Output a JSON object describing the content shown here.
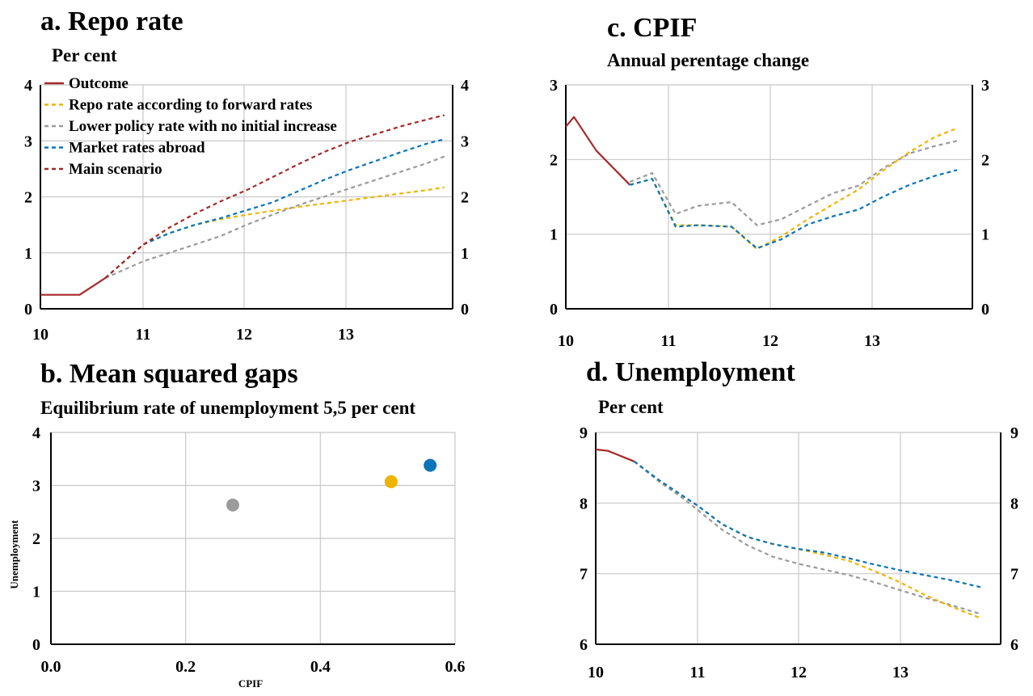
{
  "panels": {
    "a": {
      "title": "a. Repo rate",
      "subtitle": "Per cent"
    },
    "b": {
      "title": "b. Mean squared gaps",
      "subtitle": "Equilibrium rate of unemployment 5,5 per cent"
    },
    "c": {
      "title": "c. CPIF",
      "subtitle": "Annual perentage change"
    },
    "d": {
      "title": "d. Unemployment",
      "subtitle": "Per cent"
    }
  },
  "colors": {
    "outcome": "#a52a2a",
    "forward": "#f0b400",
    "lower": "#9b9b9b",
    "abroad": "#0a74b8",
    "main": "#a52a2a"
  },
  "chart_data": [
    {
      "id": "a",
      "type": "line",
      "title": "a. Repo rate",
      "subtitle": "Per cent",
      "xlim": [
        10,
        14
      ],
      "ylim": [
        0,
        4
      ],
      "xticks": [
        "10",
        "11",
        "12",
        "13"
      ],
      "yticks": [
        "0",
        "1",
        "2",
        "3",
        "4"
      ],
      "grid": true,
      "legend": {
        "placement": "top-left",
        "entries": [
          "Outcome",
          "Repo rate according to forward rates",
          "Lower policy rate with no initial increase",
          "Market rates abroad",
          "Main scenario"
        ]
      },
      "series": [
        {
          "name": "Outcome",
          "key": "outcome",
          "style": "solid",
          "points": [
            [
              10.0,
              0.25
            ],
            [
              10.38,
              0.25
            ],
            [
              10.63,
              0.55
            ]
          ]
        },
        {
          "name": "Repo rate according to forward rates",
          "key": "forward",
          "style": "dashed",
          "points": [
            [
              10.63,
              0.55
            ],
            [
              11.0,
              1.15
            ],
            [
              11.25,
              1.35
            ],
            [
              11.5,
              1.5
            ],
            [
              11.75,
              1.6
            ],
            [
              12.0,
              1.68
            ],
            [
              12.25,
              1.75
            ],
            [
              12.5,
              1.82
            ],
            [
              12.75,
              1.88
            ],
            [
              13.0,
              1.94
            ],
            [
              13.25,
              2.0
            ],
            [
              13.5,
              2.06
            ],
            [
              13.75,
              2.12
            ],
            [
              13.92,
              2.17
            ]
          ]
        },
        {
          "name": "Lower policy rate with no initial increase",
          "key": "lower",
          "style": "dashed",
          "points": [
            [
              10.63,
              0.55
            ],
            [
              11.0,
              0.85
            ],
            [
              11.25,
              1.0
            ],
            [
              11.5,
              1.15
            ],
            [
              11.75,
              1.3
            ],
            [
              12.0,
              1.5
            ],
            [
              12.25,
              1.68
            ],
            [
              12.5,
              1.85
            ],
            [
              12.75,
              2.0
            ],
            [
              13.0,
              2.15
            ],
            [
              13.25,
              2.3
            ],
            [
              13.5,
              2.45
            ],
            [
              13.75,
              2.6
            ],
            [
              13.92,
              2.72
            ]
          ]
        },
        {
          "name": "Market rates abroad",
          "key": "abroad",
          "style": "dashed",
          "points": [
            [
              10.63,
              0.55
            ],
            [
              11.0,
              1.15
            ],
            [
              11.25,
              1.35
            ],
            [
              11.5,
              1.5
            ],
            [
              11.75,
              1.62
            ],
            [
              12.0,
              1.76
            ],
            [
              12.25,
              1.9
            ],
            [
              12.5,
              2.1
            ],
            [
              12.75,
              2.3
            ],
            [
              13.0,
              2.48
            ],
            [
              13.25,
              2.64
            ],
            [
              13.5,
              2.8
            ],
            [
              13.75,
              2.95
            ],
            [
              13.92,
              3.03
            ]
          ]
        },
        {
          "name": "Main scenario",
          "key": "main",
          "style": "dashed",
          "points": [
            [
              10.63,
              0.55
            ],
            [
              11.0,
              1.15
            ],
            [
              11.25,
              1.45
            ],
            [
              11.5,
              1.7
            ],
            [
              11.75,
              1.92
            ],
            [
              12.0,
              2.12
            ],
            [
              12.25,
              2.35
            ],
            [
              12.5,
              2.58
            ],
            [
              12.75,
              2.8
            ],
            [
              13.0,
              2.98
            ],
            [
              13.25,
              3.12
            ],
            [
              13.5,
              3.26
            ],
            [
              13.75,
              3.38
            ],
            [
              13.92,
              3.46
            ]
          ]
        }
      ]
    },
    {
      "id": "c",
      "type": "line",
      "title": "c. CPIF",
      "subtitle": "Annual perentage change",
      "xlim": [
        10,
        14
      ],
      "ylim": [
        0,
        3
      ],
      "xticks": [
        "10",
        "11",
        "12",
        "13"
      ],
      "yticks": [
        "0",
        "1",
        "2",
        "3"
      ],
      "grid": true,
      "series": [
        {
          "name": "Outcome",
          "key": "outcome",
          "style": "solid",
          "points": [
            [
              10.0,
              2.44
            ],
            [
              10.08,
              2.57
            ],
            [
              10.3,
              2.12
            ],
            [
              10.63,
              1.66
            ]
          ]
        },
        {
          "name": "Lower policy rate with no initial increase",
          "key": "lower",
          "style": "dashed",
          "points": [
            [
              10.63,
              1.7
            ],
            [
              10.85,
              1.82
            ],
            [
              11.08,
              1.27
            ],
            [
              11.3,
              1.38
            ],
            [
              11.63,
              1.43
            ],
            [
              11.88,
              1.12
            ],
            [
              12.12,
              1.2
            ],
            [
              12.38,
              1.38
            ],
            [
              12.63,
              1.55
            ],
            [
              12.88,
              1.65
            ],
            [
              13.12,
              1.88
            ],
            [
              13.38,
              2.08
            ],
            [
              13.63,
              2.18
            ],
            [
              13.85,
              2.25
            ]
          ]
        },
        {
          "name": "Repo rate according to forward rates",
          "key": "forward",
          "style": "dashed",
          "points": [
            [
              10.63,
              1.66
            ],
            [
              10.85,
              1.74
            ],
            [
              11.08,
              1.12
            ],
            [
              11.3,
              1.12
            ],
            [
              11.63,
              1.1
            ],
            [
              11.88,
              0.8
            ],
            [
              12.12,
              0.97
            ],
            [
              12.38,
              1.2
            ],
            [
              12.63,
              1.4
            ],
            [
              12.88,
              1.6
            ],
            [
              13.12,
              1.85
            ],
            [
              13.38,
              2.1
            ],
            [
              13.63,
              2.3
            ],
            [
              13.85,
              2.42
            ]
          ]
        },
        {
          "name": "Market rates abroad",
          "key": "abroad",
          "style": "dashed",
          "points": [
            [
              10.63,
              1.66
            ],
            [
              10.85,
              1.74
            ],
            [
              11.08,
              1.1
            ],
            [
              11.3,
              1.12
            ],
            [
              11.63,
              1.1
            ],
            [
              11.88,
              0.81
            ],
            [
              12.12,
              0.93
            ],
            [
              12.38,
              1.13
            ],
            [
              12.63,
              1.24
            ],
            [
              12.88,
              1.33
            ],
            [
              13.12,
              1.5
            ],
            [
              13.38,
              1.66
            ],
            [
              13.63,
              1.78
            ],
            [
              13.85,
              1.86
            ]
          ]
        }
      ]
    },
    {
      "id": "b",
      "type": "scatter",
      "title": "b. Mean squared gaps",
      "subtitle": "Equilibrium rate of unemployment 5,5 per cent",
      "xlabel": "CPIF",
      "ylabel": "Unemployment",
      "xlim": [
        0,
        0.6
      ],
      "ylim": [
        0,
        4
      ],
      "xticks": [
        "0.0",
        "0.2",
        "0.4",
        "0.6"
      ],
      "yticks": [
        "0",
        "1",
        "2",
        "3",
        "4"
      ],
      "grid": true,
      "points": [
        {
          "x": 0.27,
          "y": 2.63,
          "key": "lower"
        },
        {
          "x": 0.505,
          "y": 3.07,
          "key": "forward"
        },
        {
          "x": 0.563,
          "y": 3.38,
          "key": "abroad"
        }
      ]
    },
    {
      "id": "d",
      "type": "line",
      "title": "d. Unemployment",
      "subtitle": "Per cent",
      "xlim": [
        10,
        14
      ],
      "ylim": [
        6,
        9
      ],
      "xticks": [
        "10",
        "11",
        "12",
        "13"
      ],
      "yticks": [
        "6",
        "7",
        "8",
        "9"
      ],
      "grid": true,
      "series": [
        {
          "name": "Outcome",
          "key": "outcome",
          "style": "solid",
          "points": [
            [
              10.0,
              8.76
            ],
            [
              10.12,
              8.74
            ],
            [
              10.38,
              8.59
            ]
          ]
        },
        {
          "name": "Lower policy rate with no initial increase",
          "key": "lower",
          "style": "dashed",
          "points": [
            [
              10.38,
              8.59
            ],
            [
              10.63,
              8.3
            ],
            [
              10.88,
              8.05
            ],
            [
              11.0,
              7.91
            ],
            [
              11.25,
              7.62
            ],
            [
              11.5,
              7.4
            ],
            [
              11.75,
              7.24
            ],
            [
              12.0,
              7.14
            ],
            [
              12.25,
              7.06
            ],
            [
              12.5,
              6.98
            ],
            [
              12.75,
              6.88
            ],
            [
              13.0,
              6.77
            ],
            [
              13.25,
              6.66
            ],
            [
              13.5,
              6.56
            ],
            [
              13.8,
              6.43
            ]
          ]
        },
        {
          "name": "Repo rate according to forward rates",
          "key": "forward",
          "style": "dashed",
          "points": [
            [
              10.38,
              8.59
            ],
            [
              10.63,
              8.32
            ],
            [
              11.0,
              7.97
            ],
            [
              11.25,
              7.7
            ],
            [
              11.5,
              7.52
            ],
            [
              11.75,
              7.42
            ],
            [
              12.0,
              7.35
            ],
            [
              12.25,
              7.27
            ],
            [
              12.5,
              7.18
            ],
            [
              12.75,
              7.04
            ],
            [
              13.0,
              6.88
            ],
            [
              13.25,
              6.7
            ],
            [
              13.5,
              6.54
            ],
            [
              13.8,
              6.37
            ]
          ]
        },
        {
          "name": "Market rates abroad",
          "key": "abroad",
          "style": "dashed",
          "points": [
            [
              10.38,
              8.59
            ],
            [
              10.63,
              8.32
            ],
            [
              11.0,
              7.97
            ],
            [
              11.25,
              7.7
            ],
            [
              11.5,
              7.52
            ],
            [
              11.75,
              7.42
            ],
            [
              12.0,
              7.35
            ],
            [
              12.25,
              7.3
            ],
            [
              12.5,
              7.22
            ],
            [
              12.75,
              7.13
            ],
            [
              13.0,
              7.05
            ],
            [
              13.25,
              6.98
            ],
            [
              13.5,
              6.91
            ],
            [
              13.8,
              6.81
            ]
          ]
        }
      ]
    }
  ]
}
